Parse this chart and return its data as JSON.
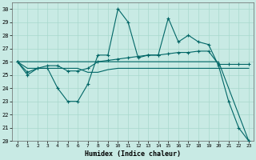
{
  "xlabel": "Humidex (Indice chaleur)",
  "bg_color": "#c8eae4",
  "grid_color": "#a8d8cc",
  "line_color": "#006666",
  "xlim": [
    -0.5,
    23.5
  ],
  "ylim": [
    20,
    30.5
  ],
  "yticks": [
    20,
    21,
    22,
    23,
    24,
    25,
    26,
    27,
    28,
    29,
    30
  ],
  "xticks": [
    0,
    1,
    2,
    3,
    4,
    5,
    6,
    7,
    8,
    9,
    10,
    11,
    12,
    13,
    14,
    15,
    16,
    17,
    18,
    19,
    20,
    21,
    22,
    23
  ],
  "series1_x": [
    0,
    1,
    2,
    3,
    4,
    5,
    6,
    7,
    8,
    9,
    10,
    11,
    12,
    13,
    14,
    15,
    16,
    17,
    18,
    19,
    20,
    21,
    22,
    23
  ],
  "series1_y": [
    26.0,
    25.0,
    25.5,
    25.5,
    24.0,
    23.0,
    23.0,
    24.3,
    26.5,
    26.5,
    30.0,
    29.0,
    26.3,
    26.5,
    26.5,
    29.3,
    27.5,
    28.0,
    27.5,
    27.3,
    25.7,
    23.0,
    21.0,
    20.0
  ],
  "series2_x": [
    0,
    1,
    2,
    3,
    4,
    5,
    6,
    7,
    8,
    9,
    10,
    11,
    12,
    13,
    14,
    15,
    16,
    17,
    18,
    19,
    20,
    21,
    22,
    23
  ],
  "series2_y": [
    26.0,
    25.2,
    25.5,
    25.7,
    25.7,
    25.3,
    25.3,
    25.5,
    26.0,
    26.1,
    26.2,
    26.3,
    26.4,
    26.5,
    26.5,
    26.6,
    26.7,
    26.7,
    26.8,
    26.8,
    25.8,
    25.8,
    25.8,
    25.8
  ],
  "series3_x": [
    0,
    1,
    2,
    3,
    4,
    5,
    6,
    7,
    8,
    9,
    10,
    11,
    12,
    13,
    14,
    15,
    16,
    17,
    18,
    19,
    20,
    21,
    22,
    23
  ],
  "series3_y": [
    26.0,
    25.5,
    25.5,
    25.5,
    25.5,
    25.5,
    25.5,
    25.2,
    25.2,
    25.4,
    25.5,
    25.5,
    25.5,
    25.5,
    25.5,
    25.5,
    25.5,
    25.5,
    25.5,
    25.5,
    25.5,
    25.5,
    25.5,
    25.5
  ],
  "series4_x": [
    0,
    20,
    23
  ],
  "series4_y": [
    26.0,
    26.0,
    20.0
  ]
}
